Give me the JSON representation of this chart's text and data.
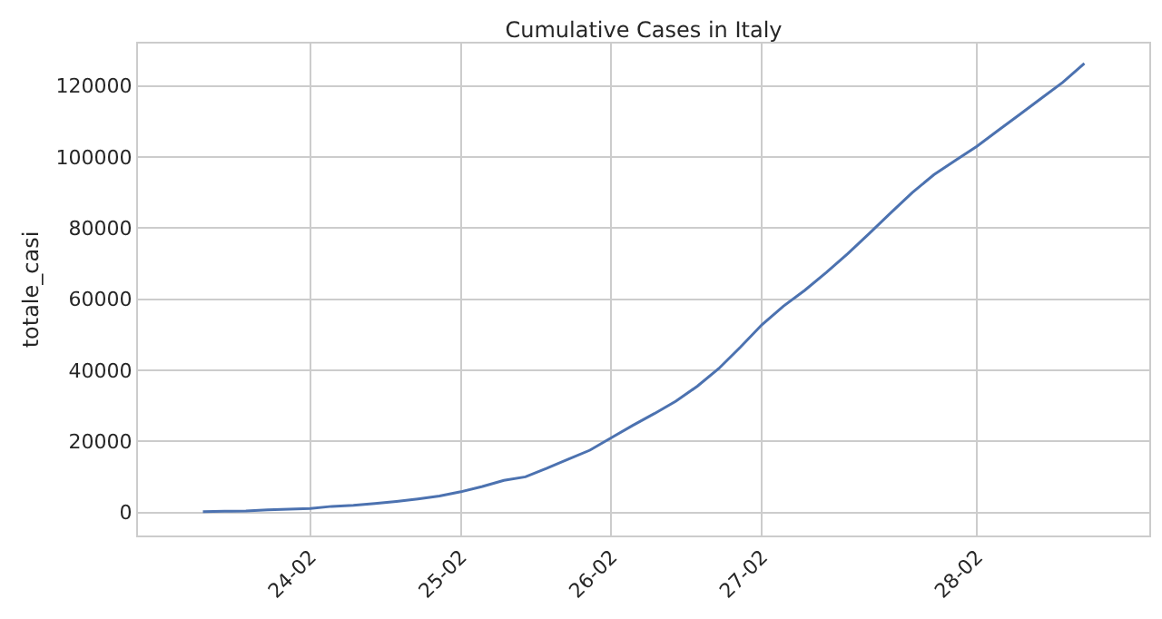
{
  "chart_data": {
    "type": "line",
    "title": "Cumulative Cases in Italy",
    "ylabel": "totale_casi",
    "categories": [
      null,
      null,
      null,
      null,
      null,
      "24-02",
      null,
      null,
      null,
      null,
      null,
      null,
      "25-02",
      null,
      null,
      null,
      null,
      null,
      null,
      "26-02",
      null,
      null,
      null,
      null,
      null,
      null,
      "27-02",
      null,
      null,
      null,
      null,
      null,
      null,
      null,
      null,
      null,
      "28-02",
      null,
      null,
      null,
      null,
      null
    ],
    "series": [
      {
        "color": "#4c72b0",
        "values": [
          200,
          300,
          400,
          700,
          900,
          1100,
          1700,
          2000,
          2500,
          3100,
          3800,
          4600,
          5800,
          7300,
          9000,
          10000,
          12400,
          15000,
          17500,
          21000,
          24500,
          27800,
          31300,
          35500,
          40500,
          46500,
          52800,
          58000,
          62500,
          67500,
          72800,
          78500,
          84300,
          90000,
          95000,
          99000,
          103000,
          107500,
          112000,
          116500,
          121000,
          126300
        ]
      }
    ],
    "ylim": [
      -6500,
      131900
    ],
    "yticks": [
      0,
      20000,
      40000,
      60000,
      80000,
      100000,
      120000
    ],
    "grid": true,
    "marker": "none",
    "line_style": "solid"
  }
}
